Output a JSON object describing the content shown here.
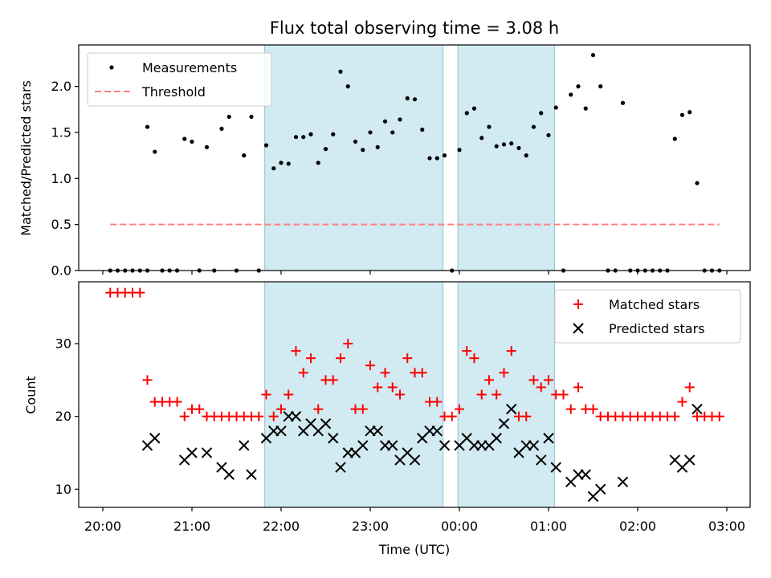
{
  "chart_data": {
    "type": "scatter",
    "title": "Flux total observing time = 3.08 h",
    "xlabel": "Time (UTC)",
    "x_ticks": [
      "20:00",
      "21:00",
      "22:00",
      "23:00",
      "00:00",
      "01:00",
      "02:00",
      "03:00"
    ],
    "shaded_intervals": [
      {
        "start": "21:49",
        "end": "23:49"
      },
      {
        "start": "23:59",
        "end": "01:04"
      }
    ],
    "shade_color": "#add8e6",
    "panels": [
      {
        "ylabel": "Matched/Predicted stars",
        "ylim": [
          0,
          2.45
        ],
        "yticks": [
          "0.0",
          "0.5",
          "1.0",
          "1.5",
          "2.0"
        ],
        "legend_position": "upper left",
        "series": [
          {
            "name": "Measurements",
            "marker": "dot",
            "color": "#000000",
            "points": [
              [
                "20:05",
                0
              ],
              [
                "20:10",
                0
              ],
              [
                "20:15",
                0
              ],
              [
                "20:20",
                0
              ],
              [
                "20:25",
                0
              ],
              [
                "20:30",
                0
              ],
              [
                "20:30",
                1.56
              ],
              [
                "20:35",
                1.29
              ],
              [
                "20:40",
                0
              ],
              [
                "20:45",
                0
              ],
              [
                "20:50",
                0
              ],
              [
                "20:55",
                1.43
              ],
              [
                "21:00",
                1.4
              ],
              [
                "21:05",
                0
              ],
              [
                "21:10",
                1.34
              ],
              [
                "21:15",
                0
              ],
              [
                "21:20",
                1.54
              ],
              [
                "21:25",
                1.67
              ],
              [
                "21:30",
                0
              ],
              [
                "21:35",
                1.25
              ],
              [
                "21:40",
                1.67
              ],
              [
                "21:45",
                0
              ],
              [
                "21:50",
                1.36
              ],
              [
                "21:55",
                1.11
              ],
              [
                "22:00",
                1.17
              ],
              [
                "22:05",
                1.16
              ],
              [
                "22:10",
                1.45
              ],
              [
                "22:15",
                1.45
              ],
              [
                "22:20",
                1.48
              ],
              [
                "22:25",
                1.17
              ],
              [
                "22:30",
                1.32
              ],
              [
                "22:35",
                1.48
              ],
              [
                "22:40",
                2.16
              ],
              [
                "22:45",
                2.0
              ],
              [
                "22:50",
                1.4
              ],
              [
                "22:55",
                1.31
              ],
              [
                "23:00",
                1.5
              ],
              [
                "23:05",
                1.34
              ],
              [
                "23:10",
                1.62
              ],
              [
                "23:15",
                1.5
              ],
              [
                "23:20",
                1.64
              ],
              [
                "23:25",
                1.87
              ],
              [
                "23:30",
                1.86
              ],
              [
                "23:35",
                1.53
              ],
              [
                "23:40",
                1.22
              ],
              [
                "23:45",
                1.22
              ],
              [
                "23:50",
                1.25
              ],
              [
                "23:55",
                0
              ],
              [
                "00:00",
                1.31
              ],
              [
                "00:05",
                1.71
              ],
              [
                "00:10",
                1.76
              ],
              [
                "00:15",
                1.44
              ],
              [
                "00:20",
                1.56
              ],
              [
                "00:25",
                1.35
              ],
              [
                "00:30",
                1.37
              ],
              [
                "00:35",
                1.38
              ],
              [
                "00:40",
                1.33
              ],
              [
                "00:45",
                1.25
              ],
              [
                "00:50",
                1.56
              ],
              [
                "00:55",
                1.71
              ],
              [
                "01:00",
                1.47
              ],
              [
                "01:05",
                1.77
              ],
              [
                "01:10",
                0
              ],
              [
                "01:15",
                1.91
              ],
              [
                "01:20",
                2.0
              ],
              [
                "01:25",
                1.76
              ],
              [
                "01:30",
                2.34
              ],
              [
                "01:35",
                2.0
              ],
              [
                "01:40",
                0
              ],
              [
                "01:45",
                0
              ],
              [
                "01:50",
                1.82
              ],
              [
                "01:55",
                0
              ],
              [
                "02:00",
                0
              ],
              [
                "02:05",
                0
              ],
              [
                "02:10",
                0
              ],
              [
                "02:15",
                0
              ],
              [
                "02:20",
                0
              ],
              [
                "02:25",
                1.43
              ],
              [
                "02:30",
                1.69
              ],
              [
                "02:35",
                1.72
              ],
              [
                "02:40",
                0.95
              ],
              [
                "02:45",
                0
              ],
              [
                "02:50",
                0
              ],
              [
                "02:55",
                0
              ]
            ]
          },
          {
            "name": "Threshold",
            "marker": "dashed-line",
            "color": "#ff7f7f",
            "points": [
              [
                "20:05",
                0.5
              ],
              [
                "02:55",
                0.5
              ]
            ]
          }
        ]
      },
      {
        "ylabel": "Count",
        "ylim": [
          7.5,
          38.5
        ],
        "yticks": [
          "10",
          "20",
          "30"
        ],
        "legend_position": "upper right",
        "series": [
          {
            "name": "Matched stars",
            "marker": "plus",
            "color": "#ff0000",
            "points": [
              [
                "20:05",
                37
              ],
              [
                "20:10",
                37
              ],
              [
                "20:15",
                37
              ],
              [
                "20:20",
                37
              ],
              [
                "20:25",
                37
              ],
              [
                "20:30",
                25
              ],
              [
                "20:35",
                22
              ],
              [
                "20:40",
                22
              ],
              [
                "20:45",
                22
              ],
              [
                "20:50",
                22
              ],
              [
                "20:55",
                20
              ],
              [
                "21:00",
                21
              ],
              [
                "21:05",
                21
              ],
              [
                "21:10",
                20
              ],
              [
                "21:15",
                20
              ],
              [
                "21:20",
                20
              ],
              [
                "21:25",
                20
              ],
              [
                "21:30",
                20
              ],
              [
                "21:35",
                20
              ],
              [
                "21:40",
                20
              ],
              [
                "21:45",
                20
              ],
              [
                "21:50",
                23
              ],
              [
                "21:55",
                20
              ],
              [
                "22:00",
                21
              ],
              [
                "22:05",
                23
              ],
              [
                "22:10",
                29
              ],
              [
                "22:15",
                26
              ],
              [
                "22:20",
                28
              ],
              [
                "22:25",
                21
              ],
              [
                "22:30",
                25
              ],
              [
                "22:35",
                25
              ],
              [
                "22:40",
                28
              ],
              [
                "22:45",
                30
              ],
              [
                "22:50",
                21
              ],
              [
                "22:55",
                21
              ],
              [
                "23:00",
                27
              ],
              [
                "23:05",
                24
              ],
              [
                "23:10",
                26
              ],
              [
                "23:15",
                24
              ],
              [
                "23:20",
                23
              ],
              [
                "23:25",
                28
              ],
              [
                "23:30",
                26
              ],
              [
                "23:35",
                26
              ],
              [
                "23:40",
                22
              ],
              [
                "23:45",
                22
              ],
              [
                "23:50",
                20
              ],
              [
                "23:55",
                20
              ],
              [
                "00:00",
                21
              ],
              [
                "00:05",
                29
              ],
              [
                "00:10",
                28
              ],
              [
                "00:15",
                23
              ],
              [
                "00:20",
                25
              ],
              [
                "00:25",
                23
              ],
              [
                "00:30",
                26
              ],
              [
                "00:35",
                29
              ],
              [
                "00:40",
                20
              ],
              [
                "00:45",
                20
              ],
              [
                "00:50",
                25
              ],
              [
                "00:55",
                24
              ],
              [
                "01:00",
                25
              ],
              [
                "01:05",
                23
              ],
              [
                "01:10",
                23
              ],
              [
                "01:15",
                21
              ],
              [
                "01:20",
                24
              ],
              [
                "01:25",
                21
              ],
              [
                "01:30",
                21
              ],
              [
                "01:35",
                20
              ],
              [
                "01:40",
                20
              ],
              [
                "01:45",
                20
              ],
              [
                "01:50",
                20
              ],
              [
                "01:55",
                20
              ],
              [
                "02:00",
                20
              ],
              [
                "02:05",
                20
              ],
              [
                "02:10",
                20
              ],
              [
                "02:15",
                20
              ],
              [
                "02:20",
                20
              ],
              [
                "02:25",
                20
              ],
              [
                "02:30",
                22
              ],
              [
                "02:35",
                24
              ],
              [
                "02:40",
                20
              ],
              [
                "02:45",
                20
              ],
              [
                "02:50",
                20
              ],
              [
                "02:55",
                20
              ]
            ]
          },
          {
            "name": "Predicted stars",
            "marker": "x",
            "color": "#000000",
            "points": [
              [
                "20:30",
                16
              ],
              [
                "20:35",
                17
              ],
              [
                "20:55",
                14
              ],
              [
                "21:00",
                15
              ],
              [
                "21:10",
                15
              ],
              [
                "21:20",
                13
              ],
              [
                "21:25",
                12
              ],
              [
                "21:35",
                16
              ],
              [
                "21:40",
                12
              ],
              [
                "21:50",
                17
              ],
              [
                "21:55",
                18
              ],
              [
                "22:00",
                18
              ],
              [
                "22:05",
                20
              ],
              [
                "22:10",
                20
              ],
              [
                "22:15",
                18
              ],
              [
                "22:20",
                19
              ],
              [
                "22:25",
                18
              ],
              [
                "22:30",
                19
              ],
              [
                "22:35",
                17
              ],
              [
                "22:40",
                13
              ],
              [
                "22:45",
                15
              ],
              [
                "22:50",
                15
              ],
              [
                "22:55",
                16
              ],
              [
                "23:00",
                18
              ],
              [
                "23:05",
                18
              ],
              [
                "23:10",
                16
              ],
              [
                "23:15",
                16
              ],
              [
                "23:20",
                14
              ],
              [
                "23:25",
                15
              ],
              [
                "23:30",
                14
              ],
              [
                "23:35",
                17
              ],
              [
                "23:40",
                18
              ],
              [
                "23:45",
                18
              ],
              [
                "23:50",
                16
              ],
              [
                "00:00",
                16
              ],
              [
                "00:05",
                17
              ],
              [
                "00:10",
                16
              ],
              [
                "00:15",
                16
              ],
              [
                "00:20",
                16
              ],
              [
                "00:25",
                17
              ],
              [
                "00:30",
                19
              ],
              [
                "00:35",
                21
              ],
              [
                "00:40",
                15
              ],
              [
                "00:45",
                16
              ],
              [
                "00:50",
                16
              ],
              [
                "00:55",
                14
              ],
              [
                "01:00",
                17
              ],
              [
                "01:05",
                13
              ],
              [
                "01:15",
                11
              ],
              [
                "01:20",
                12
              ],
              [
                "01:25",
                12
              ],
              [
                "01:30",
                9
              ],
              [
                "01:35",
                10
              ],
              [
                "01:50",
                11
              ],
              [
                "02:25",
                14
              ],
              [
                "02:30",
                13
              ],
              [
                "02:35",
                14
              ],
              [
                "02:40",
                21
              ]
            ]
          }
        ]
      }
    ]
  }
}
